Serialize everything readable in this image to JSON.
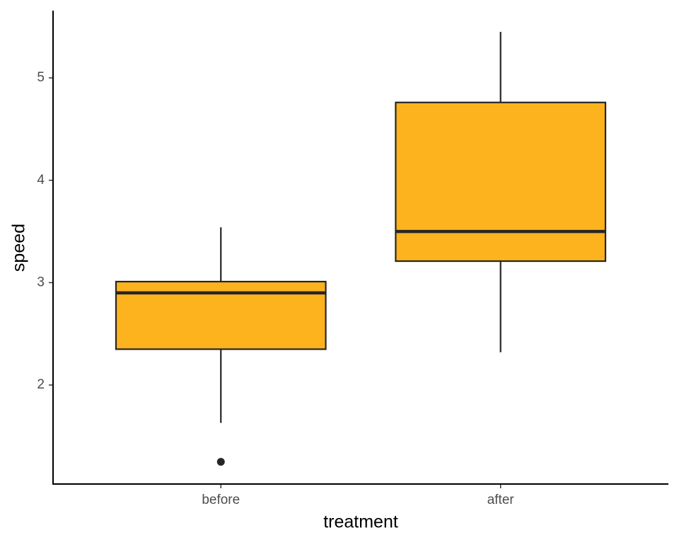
{
  "chart_data": {
    "type": "box",
    "x_label": "treatment",
    "y_label": "speed",
    "categories": [
      "before",
      "after"
    ],
    "boxes": [
      {
        "whisker_low": 1.63,
        "q1": 2.35,
        "median": 2.9,
        "q3": 3.01,
        "whisker_high": 3.54,
        "outliers": [
          1.25
        ]
      },
      {
        "whisker_low": 2.32,
        "q1": 3.21,
        "median": 3.5,
        "q3": 4.76,
        "whisker_high": 5.45,
        "outliers": []
      }
    ],
    "color": "#fcb31e",
    "ylim": [
      1.033,
      5.657
    ],
    "yticks": [
      2,
      3,
      4,
      5
    ],
    "grid": false
  }
}
